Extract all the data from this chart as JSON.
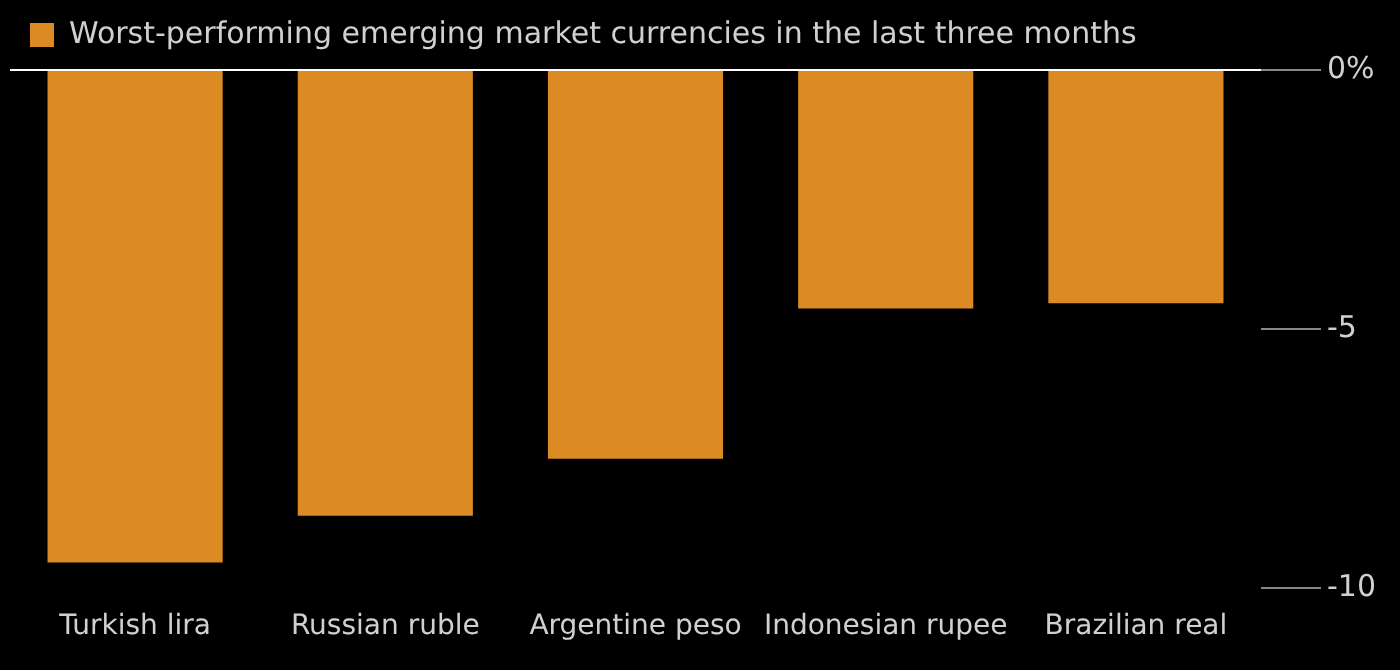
{
  "chart_data": {
    "type": "bar",
    "categories": [
      "Turkish lira",
      "Russian ruble",
      "Argentine peso",
      "Indonesian rupee",
      "Brazilian real"
    ],
    "series": [
      {
        "name": "Worst-performing emerging market currencies in the last three months",
        "color": "#dc8a24",
        "values": [
          -9.5,
          -8.6,
          -7.5,
          -4.6,
          -4.5
        ]
      }
    ],
    "ylim": [
      -10,
      0
    ],
    "yticks": [
      {
        "value": 0,
        "label": "0%"
      },
      -5,
      -10
    ],
    "grid": false,
    "legend": "top left"
  }
}
